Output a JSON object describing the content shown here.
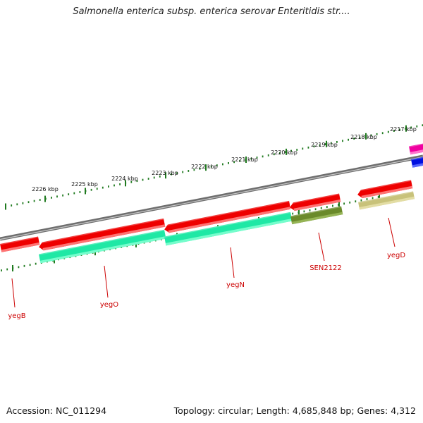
{
  "title": "Salmonella enterica subsp. enterica serovar Enteritidis str....",
  "accession_text": "Accession: NC_011294",
  "topology_text": "Topology: circular; Length: 4,685,848 bp; Genes: 4,312",
  "colors": {
    "backbone": "#8a8a8a",
    "cds_red": "#ee0000",
    "ruler": "#1f7a1f",
    "label_red": "#cc0000",
    "green": "#1fe8a5",
    "olive": "#6a8a2a",
    "khaki": "#c8c27a",
    "magenta": "#f000a0",
    "blue": "#0010e0"
  },
  "kbp_labels": [
    "2217 kbp",
    "2218 kbp",
    "2219 kbp",
    "2220 kbp",
    "2221 kbp",
    "2222 kbp",
    "2223 kbp",
    "2224 kbp",
    "2225 kbp",
    "2226 kbp"
  ],
  "genes": [
    {
      "name": "yegB"
    },
    {
      "name": "yegO"
    },
    {
      "name": "yegN"
    },
    {
      "name": "SEN2122"
    },
    {
      "name": "yegD"
    }
  ]
}
